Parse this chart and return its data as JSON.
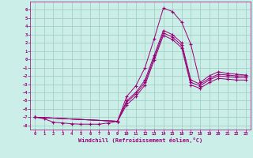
{
  "xlabel": "Windchill (Refroidissement éolien,°C)",
  "bg_color": "#cceee8",
  "line_color": "#990077",
  "grid_color": "#99ccbb",
  "xlim": [
    -0.5,
    23.5
  ],
  "ylim": [
    -8.5,
    7.0
  ],
  "xticks": [
    0,
    1,
    2,
    3,
    4,
    5,
    6,
    7,
    8,
    9,
    10,
    11,
    12,
    13,
    14,
    15,
    16,
    17,
    18,
    19,
    20,
    21,
    22,
    23
  ],
  "yticks": [
    -8,
    -7,
    -6,
    -5,
    -4,
    -3,
    -2,
    -1,
    0,
    1,
    2,
    3,
    4,
    5,
    6
  ],
  "curve1_x": [
    0,
    1,
    2,
    3,
    4,
    5,
    6,
    7,
    8,
    9,
    10,
    11,
    12,
    13,
    14,
    15,
    16,
    17,
    18,
    19,
    20,
    21,
    22,
    23
  ],
  "curve1_y": [
    -7.0,
    -7.2,
    -7.6,
    -7.7,
    -7.8,
    -7.85,
    -7.85,
    -7.85,
    -7.7,
    -7.5,
    -4.5,
    -3.2,
    -1.0,
    2.5,
    6.2,
    5.8,
    4.5,
    1.8,
    -2.8,
    -2.0,
    -1.5,
    -1.7,
    -1.8,
    -1.9
  ],
  "curve2_x": [
    0,
    9,
    10,
    11,
    12,
    13,
    14,
    15,
    16,
    17,
    18,
    19,
    20,
    21,
    22,
    23
  ],
  "curve2_y": [
    -7.0,
    -7.5,
    -5.0,
    -4.0,
    -2.5,
    0.5,
    3.5,
    3.0,
    2.0,
    -2.5,
    -3.0,
    -2.3,
    -1.8,
    -1.9,
    -2.0,
    -2.0
  ],
  "curve3_x": [
    0,
    9,
    10,
    11,
    12,
    13,
    14,
    15,
    16,
    17,
    18,
    19,
    20,
    21,
    22,
    23
  ],
  "curve3_y": [
    -7.0,
    -7.5,
    -5.2,
    -4.2,
    -2.8,
    0.2,
    3.2,
    2.7,
    1.7,
    -2.8,
    -3.2,
    -2.5,
    -2.0,
    -2.1,
    -2.2,
    -2.2
  ],
  "curve4_x": [
    0,
    9,
    10,
    11,
    12,
    13,
    14,
    15,
    16,
    17,
    18,
    19,
    20,
    21,
    22,
    23
  ],
  "curve4_y": [
    -7.0,
    -7.5,
    -5.5,
    -4.5,
    -3.1,
    -0.1,
    2.9,
    2.4,
    1.4,
    -3.1,
    -3.5,
    -2.8,
    -2.3,
    -2.4,
    -2.5,
    -2.5
  ]
}
